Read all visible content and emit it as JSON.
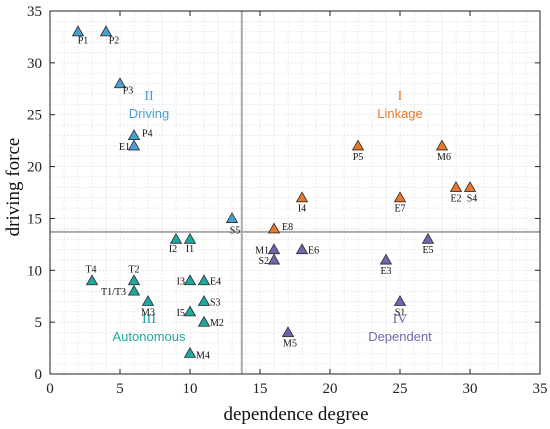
{
  "chart_data": {
    "type": "scatter",
    "xlabel": "dependence degree",
    "ylabel": "driving force",
    "xlim": [
      0,
      35
    ],
    "ylim": [
      0,
      35
    ],
    "xticks": [
      "0",
      "5",
      "10",
      "15",
      "20",
      "25",
      "30",
      "35"
    ],
    "yticks": [
      "0",
      "5",
      "10",
      "15",
      "20",
      "25",
      "30",
      "35"
    ],
    "grid": true,
    "divider": {
      "x": 13.7,
      "y": 13.7
    },
    "colors": {
      "driving": "#4a9fd1",
      "linkage": "#e8772e",
      "autonomous": "#1fa8a0",
      "dependent": "#6f67ad",
      "divider": "#aaaaaa",
      "grid": "#d4d4d4"
    },
    "quadrants": [
      {
        "id": "driving",
        "numeral": "II",
        "name": "Driving"
      },
      {
        "id": "linkage",
        "numeral": "I",
        "name": "Linkage"
      },
      {
        "id": "autonomous",
        "numeral": "III",
        "name": "Autonomous"
      },
      {
        "id": "dependent",
        "numeral": "IV",
        "name": "Dependent"
      }
    ],
    "points": [
      {
        "label": "P1",
        "x": 2,
        "y": 33,
        "group": "driving"
      },
      {
        "label": "P2",
        "x": 4,
        "y": 33,
        "group": "driving"
      },
      {
        "label": "P3",
        "x": 5,
        "y": 28,
        "group": "driving"
      },
      {
        "label": "P4",
        "x": 6,
        "y": 23,
        "group": "driving"
      },
      {
        "label": "E1",
        "x": 6,
        "y": 22,
        "group": "driving"
      },
      {
        "label": "S5",
        "x": 13,
        "y": 15,
        "group": "driving"
      },
      {
        "label": "P5",
        "x": 22,
        "y": 22,
        "group": "linkage"
      },
      {
        "label": "M6",
        "x": 28,
        "y": 22,
        "group": "linkage"
      },
      {
        "label": "I4",
        "x": 18,
        "y": 17,
        "group": "linkage"
      },
      {
        "label": "E7",
        "x": 25,
        "y": 17,
        "group": "linkage"
      },
      {
        "label": "E2",
        "x": 29,
        "y": 18,
        "group": "linkage"
      },
      {
        "label": "S4",
        "x": 30,
        "y": 18,
        "group": "linkage"
      },
      {
        "label": "E8",
        "x": 16,
        "y": 14,
        "group": "linkage"
      },
      {
        "label": "I2",
        "x": 9,
        "y": 13,
        "group": "autonomous"
      },
      {
        "label": "I1",
        "x": 10,
        "y": 13,
        "group": "autonomous"
      },
      {
        "label": "T4",
        "x": 3,
        "y": 9,
        "group": "autonomous"
      },
      {
        "label": "T2",
        "x": 6,
        "y": 9,
        "group": "autonomous"
      },
      {
        "label": "T1/T3",
        "x": 6,
        "y": 8,
        "group": "autonomous"
      },
      {
        "label": "M3",
        "x": 7,
        "y": 7,
        "group": "autonomous"
      },
      {
        "label": "I3",
        "x": 10,
        "y": 9,
        "group": "autonomous"
      },
      {
        "label": "E4",
        "x": 11,
        "y": 9,
        "group": "autonomous"
      },
      {
        "label": "S3",
        "x": 11,
        "y": 7,
        "group": "autonomous"
      },
      {
        "label": "I5",
        "x": 10,
        "y": 6,
        "group": "autonomous"
      },
      {
        "label": "M2",
        "x": 11,
        "y": 5,
        "group": "autonomous"
      },
      {
        "label": "M4",
        "x": 10,
        "y": 2,
        "group": "autonomous"
      },
      {
        "label": "M1",
        "x": 16,
        "y": 12,
        "group": "dependent"
      },
      {
        "label": "S2",
        "x": 16,
        "y": 11,
        "group": "dependent"
      },
      {
        "label": "E6",
        "x": 18,
        "y": 12,
        "group": "dependent"
      },
      {
        "label": "E3",
        "x": 24,
        "y": 11,
        "group": "dependent"
      },
      {
        "label": "E5",
        "x": 27,
        "y": 13,
        "group": "dependent"
      },
      {
        "label": "S1",
        "x": 25,
        "y": 7,
        "group": "dependent"
      },
      {
        "label": "M5",
        "x": 17,
        "y": 4,
        "group": "dependent"
      }
    ]
  }
}
